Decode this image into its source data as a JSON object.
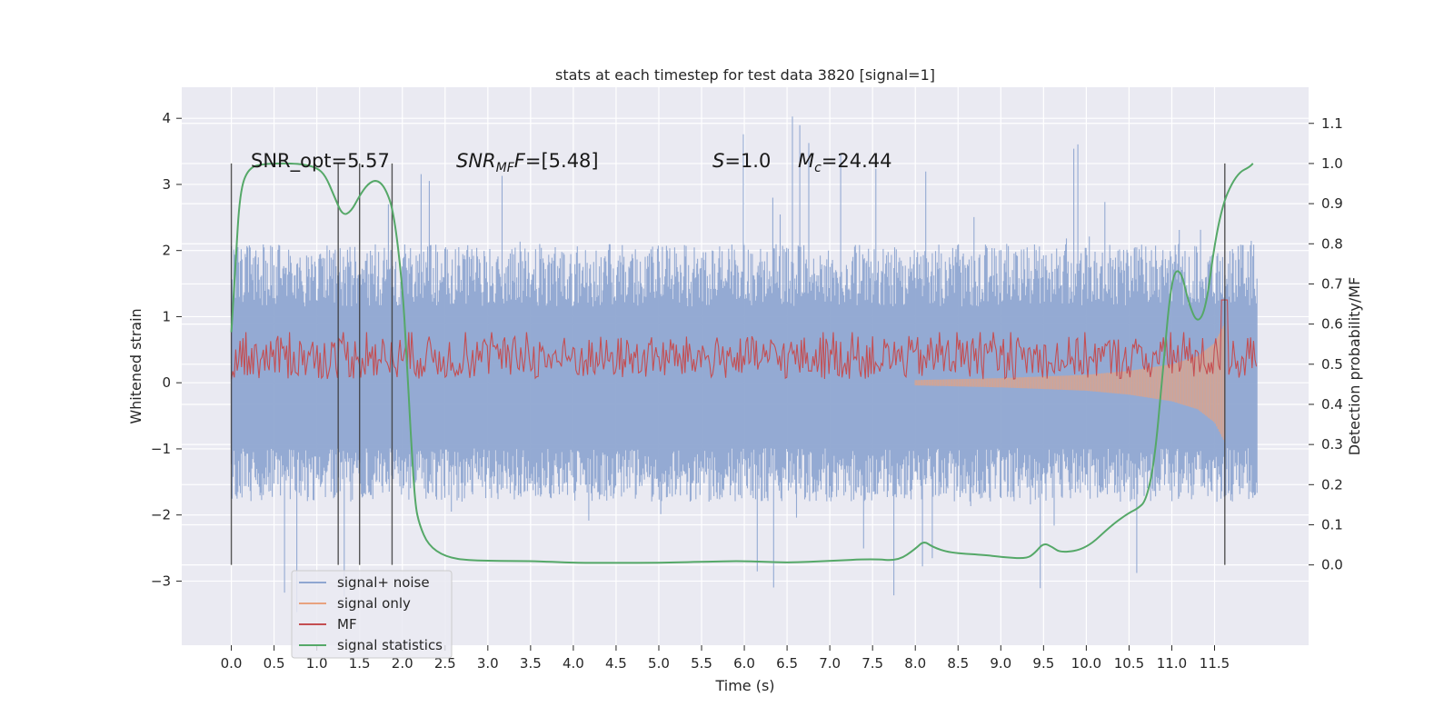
{
  "chart_data": {
    "type": "line",
    "title": "stats at each timestep for test data 3820 [signal=1]",
    "xlabel": "Time (s)",
    "ylabel": "Whitened strain",
    "ylabel_right": "Detection probability/MF",
    "xlim": [
      -0.58,
      12.6
    ],
    "ylim": [
      -3.97,
      4.47
    ],
    "ylim_right": [
      -0.2,
      1.19
    ],
    "x_ticks": [
      "0.0",
      "0.5",
      "1.0",
      "1.5",
      "2.0",
      "2.5",
      "3.0",
      "3.5",
      "4.0",
      "4.5",
      "5.0",
      "5.5",
      "6.0",
      "6.5",
      "7.0",
      "7.5",
      "8.0",
      "8.5",
      "9.0",
      "9.5",
      "10.0",
      "10.5",
      "11.0",
      "11.5"
    ],
    "y_ticks": [
      "−3",
      "−2",
      "−1",
      "0",
      "1",
      "2",
      "3",
      "4"
    ],
    "y_ticks_right": [
      "0.0",
      "0.1",
      "0.2",
      "0.3",
      "0.4",
      "0.5",
      "0.6",
      "0.7",
      "0.8",
      "0.9",
      "1.0",
      "1.1"
    ],
    "grid": true,
    "legend_position": "lower-left",
    "annotations": {
      "snr_opt": "SNR_opt=5.57",
      "snr_mf_main": "SNR",
      "snr_mf_sub": "MF",
      "snr_mf_rest": "=[5.48]",
      "s_main": "S",
      "s_rest": "=1.0",
      "mc_main": "M",
      "mc_sub": "c",
      "mc_rest": "=24.44"
    },
    "vertical_markers_x": [
      0.0,
      1.25,
      1.5,
      1.88,
      11.62
    ],
    "series": [
      {
        "name": "signal+ noise",
        "color": "#8fa6d1",
        "axis": "left",
        "envelope": {
          "x_start": 0.0,
          "x_end": 12.0,
          "max": 2.1,
          "min": -1.8,
          "spike_max": 4.1,
          "spike_min": -3.55
        }
      },
      {
        "name": "signal only",
        "color": "#e8a27f",
        "axis": "left",
        "x": [
          8.0,
          9.0,
          10.0,
          10.5,
          11.0,
          11.3,
          11.5,
          11.62
        ],
        "amplitude": [
          0.04,
          0.07,
          0.12,
          0.18,
          0.28,
          0.4,
          0.6,
          0.9
        ]
      },
      {
        "name": "MF",
        "color": "#c44e52",
        "axis": "right",
        "baseline": 0.5,
        "min": 0.46,
        "max": 0.58,
        "peak": {
          "x": 11.62,
          "value": 0.66
        }
      },
      {
        "name": "signal statistics",
        "color": "#55a868",
        "axis": "right",
        "x": [
          0.0,
          0.05,
          0.1,
          0.2,
          0.4,
          0.8,
          1.0,
          1.1,
          1.2,
          1.3,
          1.4,
          1.5,
          1.6,
          1.7,
          1.8,
          1.9,
          2.0,
          2.05,
          2.1,
          2.15,
          2.2,
          2.3,
          2.5,
          2.8,
          3.5,
          4.0,
          4.5,
          5.0,
          5.5,
          6.0,
          6.5,
          7.0,
          7.5,
          7.8,
          8.0,
          8.1,
          8.2,
          8.4,
          8.8,
          9.0,
          9.3,
          9.4,
          9.5,
          9.6,
          9.7,
          10.0,
          10.3,
          10.5,
          10.6,
          10.7,
          10.8,
          10.9,
          11.0,
          11.1,
          11.2,
          11.3,
          11.4,
          11.5,
          11.6,
          11.7,
          11.8,
          11.9,
          11.95
        ],
        "values": [
          0.58,
          0.75,
          0.93,
          0.99,
          1.0,
          1.0,
          0.99,
          0.97,
          0.92,
          0.87,
          0.88,
          0.92,
          0.95,
          0.96,
          0.94,
          0.88,
          0.7,
          0.52,
          0.32,
          0.15,
          0.1,
          0.05,
          0.02,
          0.01,
          0.01,
          0.005,
          0.005,
          0.005,
          0.008,
          0.01,
          0.005,
          0.01,
          0.015,
          0.01,
          0.04,
          0.06,
          0.045,
          0.03,
          0.025,
          0.02,
          0.015,
          0.03,
          0.055,
          0.045,
          0.03,
          0.04,
          0.1,
          0.13,
          0.14,
          0.16,
          0.26,
          0.5,
          0.72,
          0.74,
          0.65,
          0.6,
          0.64,
          0.8,
          0.9,
          0.95,
          0.98,
          0.99,
          1.0
        ]
      }
    ]
  }
}
